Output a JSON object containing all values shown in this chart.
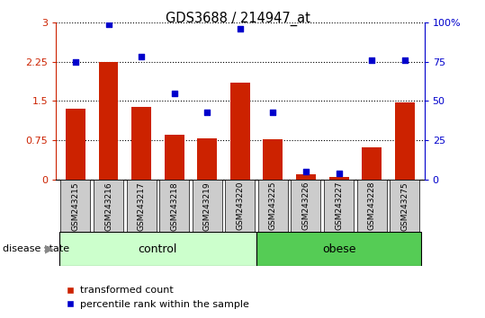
{
  "title": "GDS3688 / 214947_at",
  "samples": [
    "GSM243215",
    "GSM243216",
    "GSM243217",
    "GSM243218",
    "GSM243219",
    "GSM243220",
    "GSM243225",
    "GSM243226",
    "GSM243227",
    "GSM243228",
    "GSM243275"
  ],
  "red_values": [
    1.35,
    2.25,
    1.38,
    0.85,
    0.78,
    1.85,
    0.77,
    0.1,
    0.05,
    0.62,
    1.47
  ],
  "blue_percentiles": [
    75,
    99,
    78,
    55,
    43,
    96,
    43,
    5,
    4,
    76,
    76
  ],
  "ylim_left": [
    0,
    3
  ],
  "ylim_right": [
    0,
    100
  ],
  "yticks_left": [
    0,
    0.75,
    1.5,
    2.25,
    3.0
  ],
  "yticks_right": [
    0,
    25,
    50,
    75,
    100
  ],
  "ytick_labels_left": [
    "0",
    "0.75",
    "1.5",
    "2.25",
    "3"
  ],
  "ytick_labels_right": [
    "0",
    "25",
    "50",
    "75",
    "100%"
  ],
  "n_control": 6,
  "bar_color": "#CC2200",
  "dot_color": "#0000CC",
  "control_bg": "#CCFFCC",
  "obese_bg": "#55CC55",
  "xticklabel_bg": "#CCCCCC",
  "plot_bg": "#FFFFFF",
  "legend_red_label": "transformed count",
  "legend_blue_label": "percentile rank within the sample",
  "disease_state_label": "disease state",
  "control_label": "control",
  "obese_label": "obese"
}
